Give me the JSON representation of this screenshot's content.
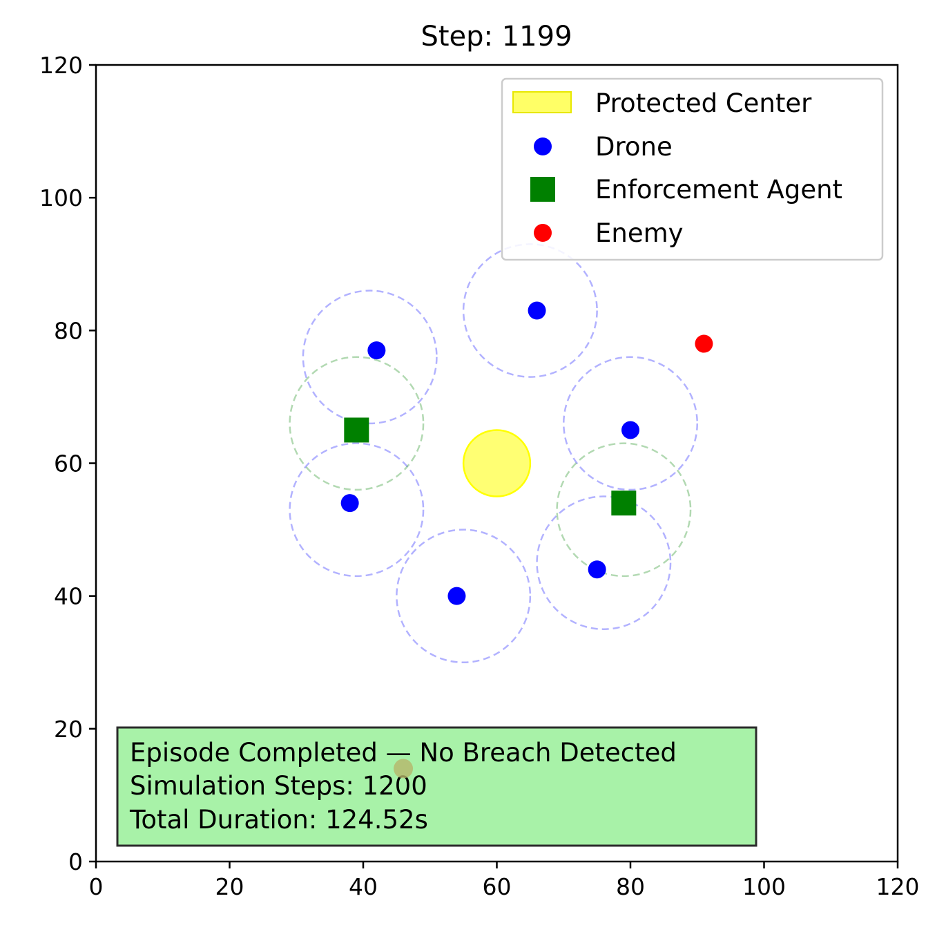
{
  "chart_data": {
    "type": "scatter",
    "title": "Step: 1199",
    "xlabel": "",
    "ylabel": "",
    "xlim": [
      0,
      120
    ],
    "ylim": [
      0,
      120
    ],
    "x_ticks": [
      "0",
      "20",
      "40",
      "60",
      "80",
      "100",
      "120"
    ],
    "y_ticks": [
      "0",
      "20",
      "40",
      "60",
      "80",
      "100",
      "120"
    ],
    "grid": false,
    "legend_position": "top-right",
    "protected_center": {
      "x": 60,
      "y": 60,
      "radius": 5,
      "color": "#ffff00"
    },
    "series": [
      {
        "name": "Drone",
        "marker": "circle",
        "color": "#0000ff",
        "points": [
          {
            "x": 42,
            "y": 77
          },
          {
            "x": 66,
            "y": 83
          },
          {
            "x": 80,
            "y": 65
          },
          {
            "x": 38,
            "y": 54
          },
          {
            "x": 54,
            "y": 40
          },
          {
            "x": 75,
            "y": 44
          }
        ]
      },
      {
        "name": "Enforcement Agent",
        "marker": "square",
        "color": "#008000",
        "points": [
          {
            "x": 39,
            "y": 65
          },
          {
            "x": 79,
            "y": 54
          }
        ]
      },
      {
        "name": "Enemy",
        "marker": "circle",
        "color": "#ff0000",
        "points": [
          {
            "x": 91,
            "y": 78
          }
        ]
      }
    ],
    "drone_ranges": {
      "color": "#0000ff",
      "radius": 10,
      "centers": [
        {
          "x": 41,
          "y": 76
        },
        {
          "x": 65,
          "y": 83
        },
        {
          "x": 80,
          "y": 66
        },
        {
          "x": 39,
          "y": 53
        },
        {
          "x": 55,
          "y": 40
        },
        {
          "x": 76,
          "y": 45
        }
      ]
    },
    "agent_ranges": {
      "color": "#008000",
      "radius": 10,
      "centers": [
        {
          "x": 39,
          "y": 66
        },
        {
          "x": 79,
          "y": 53
        }
      ]
    },
    "extra_marker": {
      "x": 46,
      "y": 14,
      "color": "#b5b56a"
    },
    "legend": {
      "entries": [
        "Protected Center",
        "Drone",
        "Enforcement Agent",
        "Enemy"
      ]
    },
    "status_box": {
      "lines": [
        "Episode Completed — No Breach Detected",
        "Simulation Steps: 1200",
        "Total Duration: 124.52s"
      ],
      "background": "#a8f2a8"
    }
  }
}
